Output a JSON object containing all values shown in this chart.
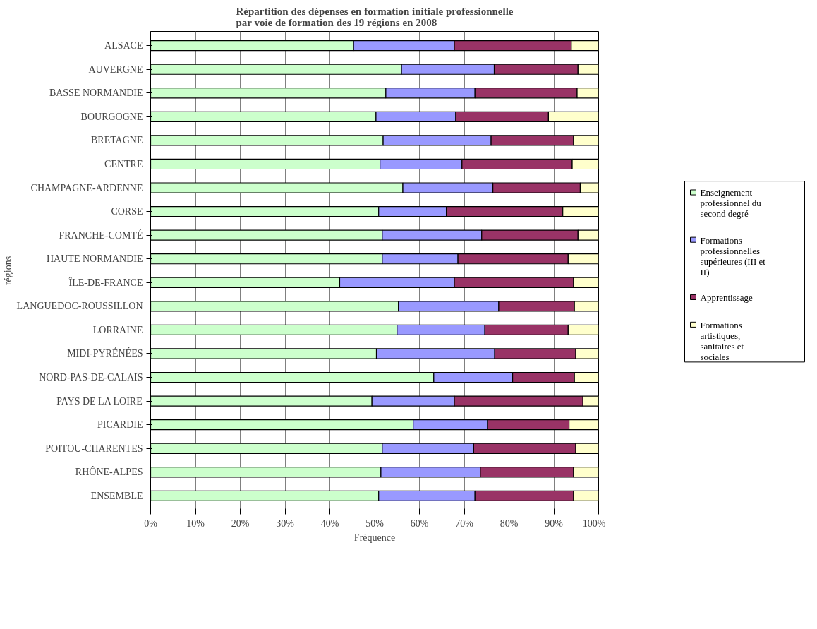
{
  "chart_data": {
    "type": "bar",
    "orientation": "horizontal",
    "stacked": true,
    "title": "Répartition des dépenses en formation initiale professionnelle\npar voie de formation des 19 régions en 2008",
    "xlabel": "Fréquence",
    "ylabel": "régions",
    "categories": [
      "ALSACE",
      "AUVERGNE",
      "BASSE NORMANDIE",
      "BOURGOGNE",
      "BRETAGNE",
      "CENTRE",
      "CHAMPAGNE-ARDENNE",
      "CORSE",
      "FRANCHE-COMTÉ",
      "HAUTE NORMANDIE",
      "ÎLE-DE-FRANCE",
      "LANGUEDOC-ROUSSILLON",
      "LORRAINE",
      "MIDI-PYRÉNÉES",
      "NORD-PAS-DE-CALAIS",
      "PAYS DE LA LOIRE",
      "PICARDIE",
      "POITOU-CHARENTES",
      "RHÔNE-ALPES",
      "ENSEMBLE"
    ],
    "series": [
      {
        "name": "Enseignement professionnel du second degré",
        "color": "#ccffcc",
        "values": [
          45.3,
          56.0,
          52.5,
          50.3,
          51.9,
          51.2,
          56.3,
          50.9,
          51.7,
          51.7,
          42.2,
          55.3,
          55.0,
          50.4,
          63.2,
          49.4,
          58.6,
          51.7,
          51.4,
          50.9
        ]
      },
      {
        "name": "Formations professionnelles supérieures (III et II)",
        "color": "#9999ff",
        "values": [
          22.5,
          20.7,
          19.9,
          17.8,
          24.1,
          18.3,
          20.1,
          15.1,
          22.2,
          16.9,
          25.6,
          22.4,
          19.6,
          26.4,
          17.6,
          18.4,
          16.6,
          20.4,
          22.2,
          21.5
        ]
      },
      {
        "name": "Apprentissage",
        "color": "#993366",
        "values": [
          26.1,
          18.7,
          22.8,
          20.7,
          18.4,
          24.6,
          19.5,
          26.0,
          21.5,
          24.6,
          26.6,
          16.9,
          18.6,
          18.1,
          13.8,
          28.7,
          18.2,
          22.8,
          20.8,
          22.0
        ]
      },
      {
        "name": "Formations artistiques, sanitaires et sociales",
        "color": "#ffffcc",
        "values": [
          6.1,
          4.6,
          4.8,
          11.2,
          5.6,
          5.9,
          4.1,
          8.0,
          4.6,
          6.8,
          5.6,
          5.4,
          6.8,
          5.1,
          5.4,
          3.5,
          6.6,
          5.1,
          5.6,
          5.6
        ]
      }
    ],
    "xlim": [
      0,
      100
    ],
    "xticks": [
      {
        "value": 0,
        "label": "0%"
      },
      {
        "value": 10,
        "label": "10%"
      },
      {
        "value": 20,
        "label": "20%"
      },
      {
        "value": 30,
        "label": "30%"
      },
      {
        "value": 40,
        "label": "40%"
      },
      {
        "value": 50,
        "label": "50%"
      },
      {
        "value": 60,
        "label": "60%"
      },
      {
        "value": 70,
        "label": "70%"
      },
      {
        "value": 80,
        "label": "80%"
      },
      {
        "value": 90,
        "label": "90%"
      },
      {
        "value": 100,
        "label": "100%"
      }
    ],
    "grid": "x",
    "legend": "right"
  }
}
